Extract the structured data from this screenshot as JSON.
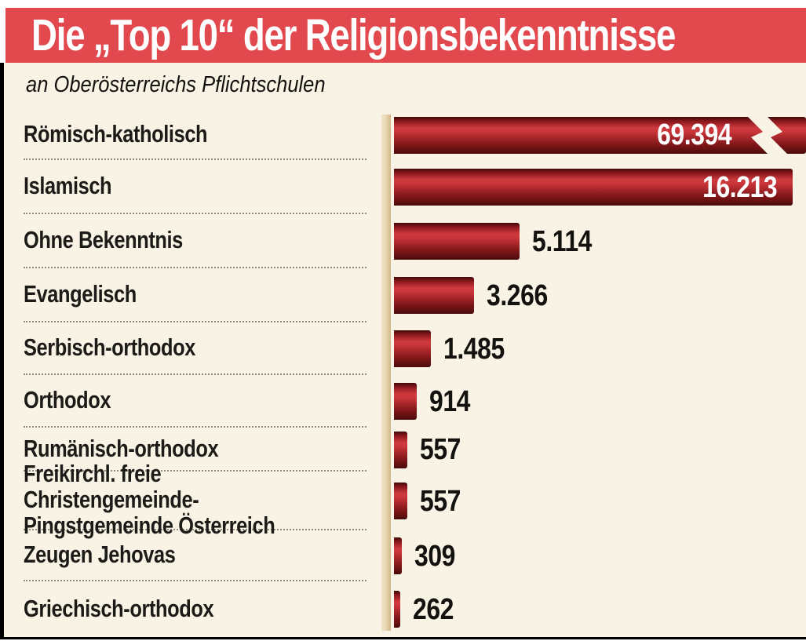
{
  "header": {
    "title": "Die „Top 10“ der Religionsbekenntnisse",
    "subtitle": "an Oberösterreichs Pflichtschulen"
  },
  "chart_data": {
    "type": "bar",
    "orientation": "horizontal",
    "title": "Die „Top 10“ der Religionsbekenntnisse",
    "subtitle": "an Oberösterreichs Pflichtschulen",
    "categories": [
      "Römisch-katholisch",
      "Islamisch",
      "Ohne Bekenntnis",
      "Evangelisch",
      "Serbisch-orthodox",
      "Orthodox",
      "Rumänisch-orthodox",
      "Freikirchl. freie Christengemeinde-\nPingstgemeinde Österreich",
      "Zeugen Jehovas",
      "Griechisch-orthodox"
    ],
    "values": [
      69394,
      16213,
      5114,
      3266,
      1485,
      914,
      557,
      557,
      309,
      262
    ],
    "value_labels": [
      "69.394",
      "16.213",
      "5.114",
      "3.266",
      "1.485",
      "914",
      "557",
      "557",
      "309",
      "262"
    ],
    "axis_scale_max": 16213,
    "truncated_bar_index": 0,
    "truncated_bar_has_break_symbol": true,
    "xlabel": "",
    "ylabel": "",
    "legend": "none",
    "grid": "off"
  },
  "colors": {
    "banner_red": "#e2494e",
    "background_cream": "#f8f3e5",
    "bar_bright_red": "#cf383d",
    "bar_dark_red": "#4a0b0b",
    "axis_tan": "#e9d9b8",
    "label_text": "#1d1b17",
    "value_inside_text": "#ffffff",
    "border_black": "#000000"
  }
}
